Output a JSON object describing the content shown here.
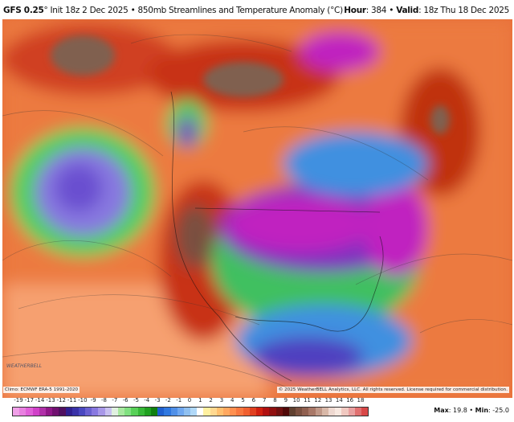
{
  "header": {
    "model": "GFS 0.25",
    "degree": "°",
    "init": "Init 18z 2 Dec 2025",
    "sep": "•",
    "product": "850mb Streamlines and Temperature Anomaly (°C)",
    "hour_label": "Hour",
    "hour": "384",
    "valid_label": "Valid",
    "valid": "18z Thu 18 Dec 2025"
  },
  "footer": {
    "climo": "Climo: ECMWF ERA-5 1991-2020",
    "copyright": "© 2025 WeatherBELL Analytics, LLC. All rights reserved. License required for commercial distribution.",
    "logo": "WeatherBELL"
  },
  "stats": {
    "max_label": "Max",
    "max": "19.8",
    "min_label": "Min",
    "min": "-25.0"
  },
  "colorbar": {
    "labels": [
      "-19",
      "-17",
      "-14",
      "-13",
      "-12",
      "-11",
      "-10",
      "-9",
      "-8",
      "-7",
      "-6",
      "-5",
      "-4",
      "-3",
      "-2",
      "-1",
      "0",
      "1",
      "2",
      "3",
      "4",
      "5",
      "6",
      "7",
      "8",
      "9",
      "10",
      "11",
      "12",
      "13",
      "14",
      "16",
      "18"
    ],
    "colors": [
      "#f0a0e8",
      "#e880e0",
      "#e060d8",
      "#d040c8",
      "#b030a8",
      "#901888",
      "#701070",
      "#501060",
      "#302090",
      "#3a32a8",
      "#4a48c0",
      "#6a60d0",
      "#8878e0",
      "#a898e8",
      "#c8c0f0",
      "#e0f0e0",
      "#a8e8a0",
      "#80e080",
      "#58d058",
      "#38b838",
      "#20a020",
      "#108010",
      "#2060d0",
      "#3078e0",
      "#5090e8",
      "#70a8f0",
      "#90c0f0",
      "#b0d8f8",
      "#ffffff",
      "#fff0a0",
      "#ffd890",
      "#ffc070",
      "#ffa860",
      "#ff9050",
      "#f87840",
      "#f06030",
      "#e04020",
      "#d02010",
      "#b01010",
      "#901010",
      "#701010",
      "#500808",
      "#604030",
      "#7a5040",
      "#906050",
      "#a87868",
      "#c09888",
      "#d8b8a8",
      "#eed8d0",
      "#f8e8e0",
      "#f0c8c0",
      "#e8a0a0",
      "#e07070",
      "#d84848"
    ]
  },
  "map": {
    "colors": {
      "warm": "#e8703a",
      "hot": "#c02810",
      "brown": "#7a5040",
      "cold_purple": "#8030c0",
      "magenta": "#c020c0",
      "green": "#50d060",
      "blue": "#4090e0"
    }
  }
}
